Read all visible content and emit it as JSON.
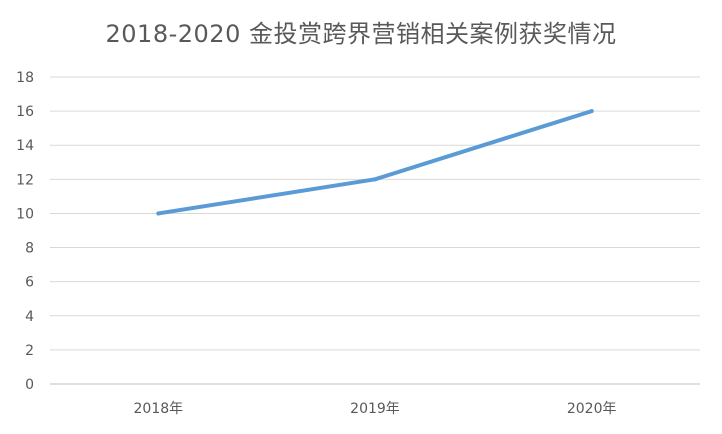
{
  "chart_data": {
    "type": "line",
    "title": "2018-2020 金投赏跨界营销相关案例获奖情况",
    "categories": [
      "2018年",
      "2019年",
      "2020年"
    ],
    "series": [
      {
        "values": [
          10,
          12,
          16
        ],
        "color": "#5b9bd5"
      }
    ],
    "ylim": [
      0,
      18
    ],
    "yticks": [
      0,
      2,
      4,
      6,
      8,
      10,
      12,
      14,
      16,
      18
    ],
    "grid": true,
    "legend": "none",
    "gridline_color": "#d9d9d9",
    "axis_color": "#bfbfbf"
  }
}
